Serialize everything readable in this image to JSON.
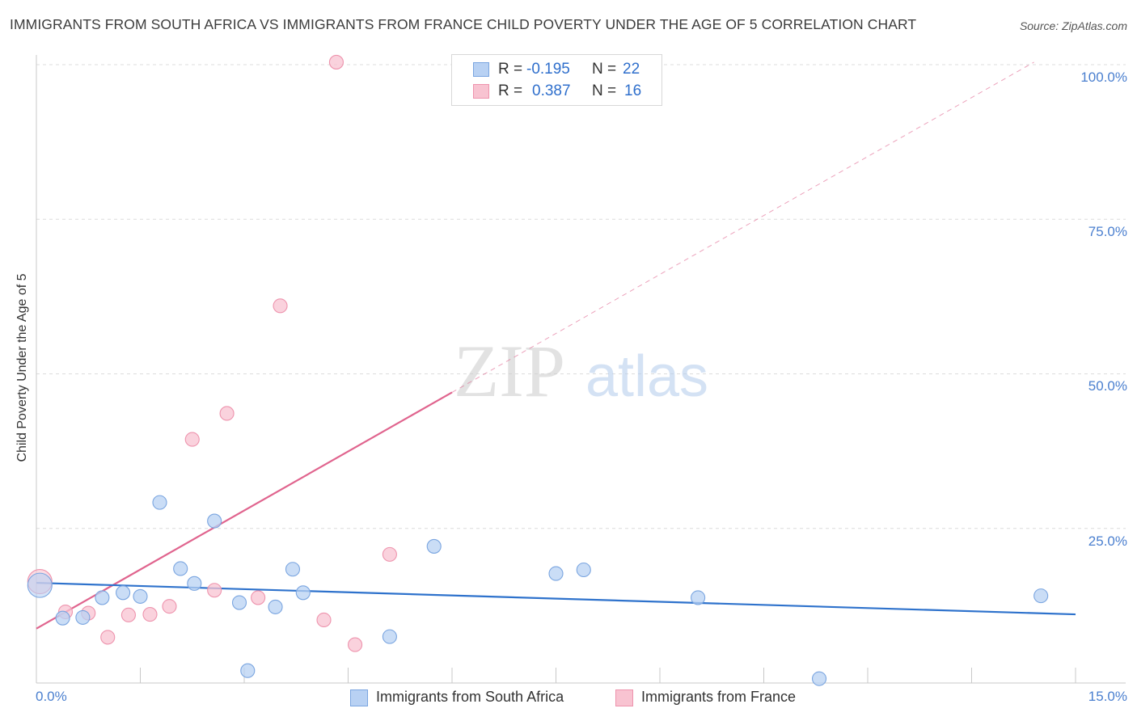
{
  "header": {
    "title": "IMMIGRANTS FROM SOUTH AFRICA VS IMMIGRANTS FROM FRANCE CHILD POVERTY UNDER THE AGE OF 5 CORRELATION CHART",
    "source": "Source: ZipAtlas.com"
  },
  "watermark": {
    "zip": "ZIP",
    "atlas": "atlas"
  },
  "legend": {
    "rows": [
      {
        "r_label": "R =",
        "r_value": "-0.195",
        "n_label": "N =",
        "n_value": "22"
      },
      {
        "r_label": "R =",
        "r_value": "0.387",
        "n_label": "N =",
        "n_value": "16"
      }
    ]
  },
  "colors": {
    "south_africa_fill": "#b8d1f3",
    "south_africa_stroke": "#7aa5e0",
    "south_africa_line": "#2e72cc",
    "france_fill": "#f8c3d1",
    "france_stroke": "#ee93ad",
    "france_line": "#e0648e",
    "grid": "#dcdcdc",
    "axis_text": "#4a7fcf"
  },
  "chart_data": {
    "type": "scatter",
    "title": "IMMIGRANTS FROM SOUTH AFRICA VS IMMIGRANTS FROM FRANCE CHILD POVERTY UNDER THE AGE OF 5 CORRELATION CHART",
    "xlabel": "",
    "ylabel": "Child Poverty Under the Age of 5",
    "xlim": [
      0,
      15
    ],
    "ylim": [
      0,
      100
    ],
    "x_tick_labels": [
      "0.0%",
      "15.0%"
    ],
    "y_ticks": [
      25,
      50,
      75,
      100
    ],
    "y_tick_labels": [
      "25.0%",
      "50.0%",
      "75.0%",
      "100.0%"
    ],
    "grid": true,
    "legend_position": "top-center",
    "series": [
      {
        "name": "Immigrants from South Africa",
        "points": [
          {
            "x": 0.05,
            "y": 15.8,
            "big": true
          },
          {
            "x": 0.38,
            "y": 10.5
          },
          {
            "x": 0.67,
            "y": 10.6
          },
          {
            "x": 0.95,
            "y": 13.8
          },
          {
            "x": 1.25,
            "y": 14.6
          },
          {
            "x": 1.5,
            "y": 14.0
          },
          {
            "x": 1.78,
            "y": 29.2
          },
          {
            "x": 2.08,
            "y": 18.5
          },
          {
            "x": 2.28,
            "y": 16.1
          },
          {
            "x": 2.57,
            "y": 26.2
          },
          {
            "x": 2.93,
            "y": 13.0
          },
          {
            "x": 3.05,
            "y": 2.0
          },
          {
            "x": 3.45,
            "y": 12.3
          },
          {
            "x": 3.7,
            "y": 18.4
          },
          {
            "x": 3.85,
            "y": 14.6
          },
          {
            "x": 5.1,
            "y": 7.5
          },
          {
            "x": 5.74,
            "y": 22.1
          },
          {
            "x": 7.5,
            "y": 17.7
          },
          {
            "x": 7.9,
            "y": 18.3
          },
          {
            "x": 9.55,
            "y": 13.8
          },
          {
            "x": 11.3,
            "y": 0.7
          },
          {
            "x": 14.5,
            "y": 14.1
          }
        ],
        "trend": {
          "x": [
            0,
            15
          ],
          "y": [
            16.2,
            11.1
          ]
        }
      },
      {
        "name": "Immigrants from France",
        "points": [
          {
            "x": 0.05,
            "y": 16.4,
            "big": true
          },
          {
            "x": 0.42,
            "y": 11.5
          },
          {
            "x": 0.75,
            "y": 11.3
          },
          {
            "x": 1.03,
            "y": 7.4
          },
          {
            "x": 1.33,
            "y": 11.0
          },
          {
            "x": 1.64,
            "y": 11.1
          },
          {
            "x": 1.92,
            "y": 12.4
          },
          {
            "x": 2.25,
            "y": 39.4
          },
          {
            "x": 2.57,
            "y": 15.0
          },
          {
            "x": 2.75,
            "y": 43.6
          },
          {
            "x": 3.2,
            "y": 13.8
          },
          {
            "x": 3.52,
            "y": 61.0
          },
          {
            "x": 4.15,
            "y": 10.2
          },
          {
            "x": 4.33,
            "y": 100.4
          },
          {
            "x": 4.6,
            "y": 6.2
          },
          {
            "x": 5.1,
            "y": 20.8
          }
        ],
        "trend": {
          "x": [
            0,
            6.0
          ],
          "y": [
            8.8,
            47.0
          ]
        },
        "trend_dashed": {
          "x": [
            6.0,
            14.4
          ],
          "y": [
            47.0,
            100.4
          ]
        }
      }
    ]
  },
  "bottom_legend": {
    "items": [
      {
        "label": "Immigrants from South Africa"
      },
      {
        "label": "Immigrants from France"
      }
    ]
  }
}
